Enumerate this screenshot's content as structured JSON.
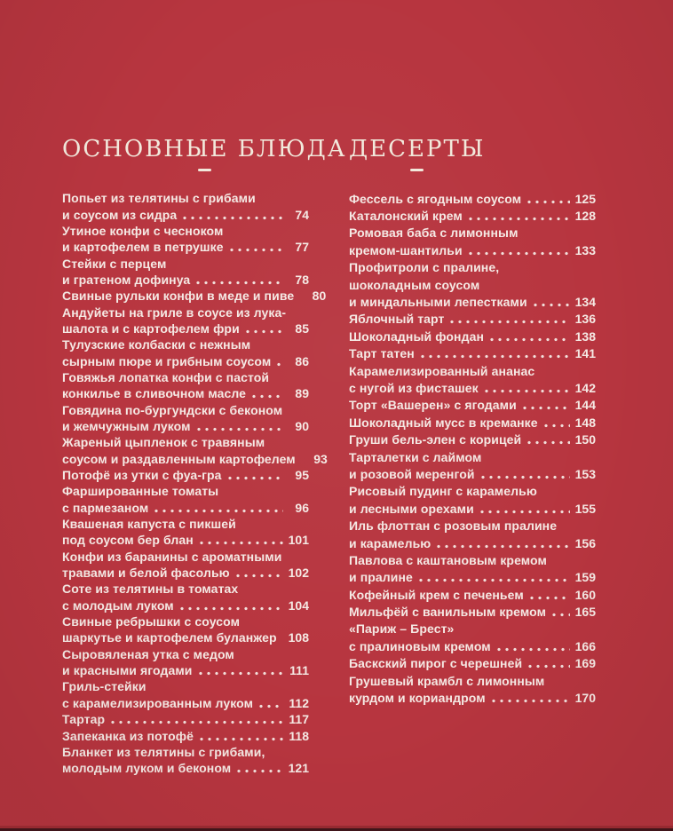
{
  "page": {
    "background_color": "#B7353F",
    "item_text_color": "#F5E9E4",
    "header_text_color": "#F2E9DC",
    "bottom_edge_shadow_color": "#972A31",
    "bottom_edge_dark_color": "#40151A"
  },
  "sections": [
    {
      "title": "ОСНОВНЫЕ БЛЮДА",
      "items": [
        {
          "lines": [
            "Попьет из телятины с грибами",
            "и соусом из сидра"
          ],
          "page": "74"
        },
        {
          "lines": [
            "Утиное конфи с чесноком",
            "и картофелем в петрушке"
          ],
          "page": "77"
        },
        {
          "lines": [
            "Стейки с перцем",
            "и гратеном дофинуа"
          ],
          "page": "78"
        },
        {
          "lines": [
            "Свиные рульки конфи в меде и пиве"
          ],
          "page": "80"
        },
        {
          "lines": [
            "Андуйеты на гриле в соусе из лука-",
            "шалота и с картофелем фри"
          ],
          "page": "85"
        },
        {
          "lines": [
            "Тулузские колбаски с нежным",
            "сырным пюре и грибным соусом"
          ],
          "page": "86"
        },
        {
          "lines": [
            "Говяжья лопатка конфи с пастой",
            "конкилье в сливочном масле"
          ],
          "page": "89"
        },
        {
          "lines": [
            "Говядина по-бургундски с беконом",
            "и жемчужным луком"
          ],
          "page": "90"
        },
        {
          "lines": [
            "Жареный цыпленок с травяным",
            "соусом и раздавленным картофелем"
          ],
          "page": "93"
        },
        {
          "lines": [
            "Потофё из утки с фуа-гра"
          ],
          "page": "95"
        },
        {
          "lines": [
            "Фаршированные томаты",
            "с пармезаном"
          ],
          "page": "96"
        },
        {
          "lines": [
            "Квашеная капуста с пикшей",
            "под соусом бер блан"
          ],
          "page": "101"
        },
        {
          "lines": [
            "Конфи из баранины с ароматными",
            "травами и белой фасолью"
          ],
          "page": "102"
        },
        {
          "lines": [
            "Соте из телятины в томатах",
            "с молодым луком"
          ],
          "page": "104"
        },
        {
          "lines": [
            "Свиные ребрышки с соусом",
            "шаркутье и картофелем буланжер"
          ],
          "page": "108"
        },
        {
          "lines": [
            "Сыровяленая утка с медом",
            "и красными ягодами"
          ],
          "page": "111"
        },
        {
          "lines": [
            "Гриль-стейки",
            "с карамелизированным луком"
          ],
          "page": "112"
        },
        {
          "lines": [
            "Тартар"
          ],
          "page": "117"
        },
        {
          "lines": [
            "Запеканка из потофё"
          ],
          "page": "118"
        },
        {
          "lines": [
            "Бланкет из телятины с грибами,",
            "молодым луком и беконом"
          ],
          "page": "121"
        }
      ]
    },
    {
      "title": "ДЕСЕРТЫ",
      "items": [
        {
          "lines": [
            "Фессель с ягодным соусом"
          ],
          "page": "125"
        },
        {
          "lines": [
            "Каталонский крем"
          ],
          "page": "128"
        },
        {
          "lines": [
            "Ромовая баба с лимонным",
            "кремом-шантильи"
          ],
          "page": "133"
        },
        {
          "lines": [
            "Профитроли с пралине,",
            "шоколадным соусом",
            "и миндальными лепестками"
          ],
          "page": "134"
        },
        {
          "lines": [
            "Яблочный тарт"
          ],
          "page": "136"
        },
        {
          "lines": [
            "Шоколадный фондан"
          ],
          "page": "138"
        },
        {
          "lines": [
            "Тарт татен"
          ],
          "page": "141"
        },
        {
          "lines": [
            "Карамелизированный ананас",
            "с нугой из фисташек"
          ],
          "page": "142"
        },
        {
          "lines": [
            "Торт «Вашерен» с ягодами"
          ],
          "page": "144"
        },
        {
          "lines": [
            "Шоколадный мусс в креманке"
          ],
          "page": "148"
        },
        {
          "lines": [
            "Груши бель-элен с корицей"
          ],
          "page": "150"
        },
        {
          "lines": [
            "Тарталетки с лаймом",
            "и розовой меренгой"
          ],
          "page": "153"
        },
        {
          "lines": [
            "Рисовый пудинг с карамелью",
            "и лесными орехами"
          ],
          "page": "155"
        },
        {
          "lines": [
            "Иль флоттан с розовым пралине",
            "и карамелью"
          ],
          "page": "156"
        },
        {
          "lines": [
            "Павлова с каштановым кремом",
            "и пралине"
          ],
          "page": "159"
        },
        {
          "lines": [
            "Кофейный крем с печеньем"
          ],
          "page": "160"
        },
        {
          "lines": [
            "Мильфёй с ванильным кремом"
          ],
          "page": "165"
        },
        {
          "lines": [
            "«Париж – Брест»",
            "с пралиновым кремом"
          ],
          "page": "166"
        },
        {
          "lines": [
            "Баскский пирог с черешней"
          ],
          "page": "169"
        },
        {
          "lines": [
            "Грушевый крамбл с лимонным",
            "курдом и кориандром"
          ],
          "page": "170"
        }
      ]
    }
  ]
}
